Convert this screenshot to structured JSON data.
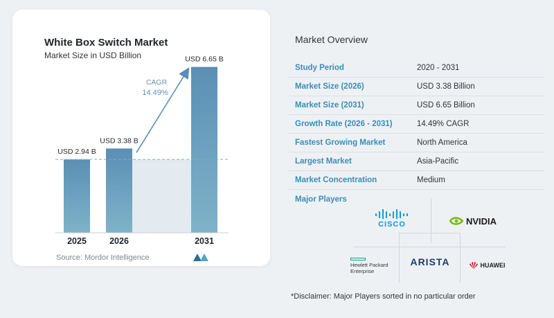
{
  "chart_data": {
    "type": "bar",
    "title": "White Box Switch Market",
    "subtitle": "Market Size in USD Billion",
    "categories": [
      "2025",
      "2026",
      "2031"
    ],
    "values": [
      2.94,
      3.38,
      6.65
    ],
    "data_labels": [
      "USD 2.94 B",
      "USD 3.38 B",
      "USD 6.65 B"
    ],
    "ylim": [
      0,
      7
    ],
    "cagr_label": "CAGR",
    "cagr_value": "14.49%",
    "reference_line_value": 2.94,
    "colors": {
      "bar_top": "#5b8fb5",
      "bar_bottom": "#7fb3c9",
      "band": "#e3ebf1",
      "arrow": "#5b8fb5"
    }
  },
  "source": "Source: Mordor Intelligence",
  "overview": {
    "title": "Market Overview",
    "rows": [
      {
        "key": "Study Period",
        "value": "2020 - 2031"
      },
      {
        "key": "Market Size (2026)",
        "value": "USD 3.38 Billion"
      },
      {
        "key": "Market Size (2031)",
        "value": "USD 6.65 Billion"
      },
      {
        "key": "Growth Rate (2026 - 2031)",
        "value": "14.49% CAGR"
      },
      {
        "key": "Fastest Growing Market",
        "value": "North America"
      },
      {
        "key": "Largest Market",
        "value": "Asia-Pacific"
      },
      {
        "key": "Market Concentration",
        "value": "Medium"
      }
    ],
    "players_title": "Major Players",
    "players": {
      "cisco": "CISCO",
      "nvidia": "NVIDIA",
      "hpe_line1": "Hewlett Packard",
      "hpe_line2": "Enterprise",
      "arista": "ARISTA",
      "huawei": "HUAWEI"
    },
    "disclaimer": "*Disclaimer: Major Players sorted in no particular order"
  }
}
